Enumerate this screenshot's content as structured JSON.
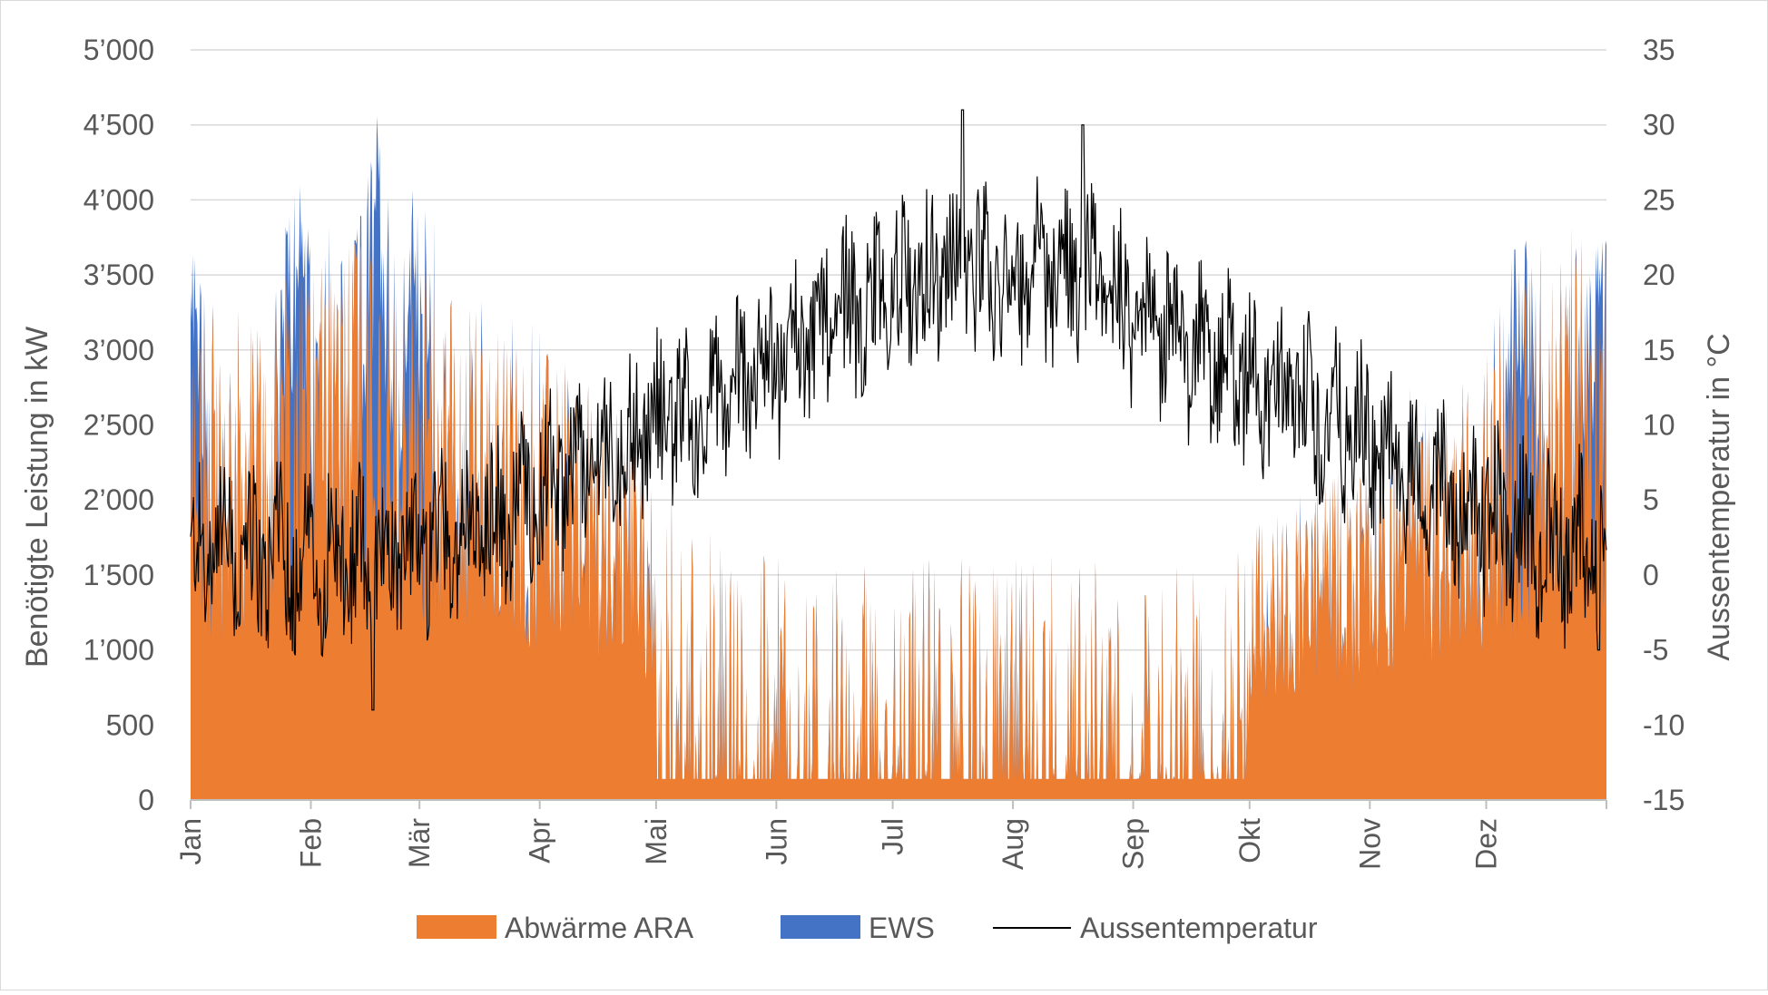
{
  "chart_data": {
    "type": "area",
    "title": "",
    "y_left": {
      "label": "Benötigte Leistung in kW",
      "min": 0,
      "max": 5000,
      "step": 500,
      "ticks": [
        "0",
        "500",
        "1’000",
        "1’500",
        "2’000",
        "2’500",
        "3’000",
        "3’500",
        "4’000",
        "4’500",
        "5’000"
      ]
    },
    "y_right": {
      "label": "Aussentemperatur in °C",
      "min": -15,
      "max": 35,
      "step": 5,
      "ticks": [
        "-15",
        "-10",
        "-5",
        "0",
        "5",
        "10",
        "15",
        "20",
        "25",
        "30",
        "35"
      ]
    },
    "x_axis": {
      "categories": [
        "Jan",
        "Feb",
        "Mär",
        "Apr",
        "Mai",
        "Jun",
        "Jul",
        "Aug",
        "Sep",
        "Okt",
        "Nov",
        "Dez"
      ],
      "month_start_days": [
        0,
        31,
        59,
        90,
        120,
        151,
        181,
        212,
        243,
        273,
        304,
        334
      ],
      "days": 365
    },
    "grid": true,
    "legend_position": "bottom",
    "series": [
      {
        "name": "Abwärme ARA",
        "kind": "stacked-area",
        "axis": "left",
        "color": "#ED7D31",
        "unit": "kW",
        "monthly_envelope_kW": [
          3000,
          3600,
          3000,
          2500,
          1700,
          1400,
          1500,
          1500,
          1500,
          1900,
          2300,
          3400
        ],
        "summer_base_kW": 140
      },
      {
        "name": "EWS",
        "kind": "stacked-area",
        "axis": "left",
        "color": "#4472C4",
        "unit": "kW",
        "peaks_kW": [
          {
            "x_day": 0,
            "y": 3850
          },
          {
            "x_day": 27,
            "y": 4380
          },
          {
            "x_day": 48,
            "y": 4620
          },
          {
            "x_day": 58,
            "y": 4230
          },
          {
            "x_day": 343,
            "y": 4000
          },
          {
            "x_day": 363,
            "y": 3930
          }
        ]
      },
      {
        "name": "Aussentemperatur",
        "kind": "line",
        "axis": "right",
        "color": "#000000",
        "unit": "°C",
        "monthly_mean_C": [
          1,
          1,
          3,
          8,
          12,
          17,
          20,
          20,
          15,
          11,
          6,
          2
        ],
        "extremes_C": [
          {
            "x_day": 47,
            "y": -9
          },
          {
            "x_day": 199,
            "y": 31
          },
          {
            "x_day": 230,
            "y": 30
          },
          {
            "x_day": 363,
            "y": -5
          }
        ]
      }
    ]
  }
}
